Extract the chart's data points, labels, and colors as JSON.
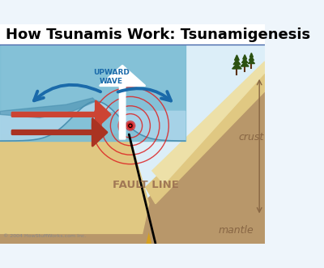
{
  "title": "How Tsunamis Work: Tsunamigenesis",
  "title_fontsize": 13,
  "bg_color": "#eef5fb",
  "title_bg": "#ddeeff",
  "water_color": "#7bbdd4",
  "water_light": "#a8d4e8",
  "water_dark": "#4a90b0",
  "sky_color": "#dceef8",
  "sand_color": "#e0c882",
  "sand_light": "#ede0a8",
  "crust_color": "#b8976a",
  "crust_light": "#c8a878",
  "mantle_color": "#d4a020",
  "subplate_dark": "#a07848",
  "upward_wave_label": "UPWARD\nWAVE",
  "fault_label": "FAULT LINE",
  "crust_label": "crust",
  "mantle_label": "mantle",
  "copyright": "© 2004 HowStuffWorks.com Inc.",
  "arrow_red": "#cc4433",
  "arrow_red2": "#aa3322",
  "arrow_blue": "#1a6aaa",
  "seismic_color": "#dd2222",
  "label_color": "#1a6aaa",
  "fault_label_color": "#9a7050",
  "dim_color": "#886644",
  "tree_color": "#2a5010",
  "title_border": "#4466aa"
}
